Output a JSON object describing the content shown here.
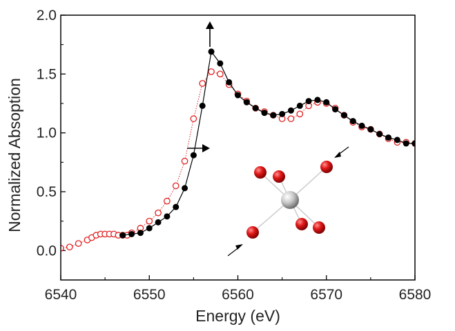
{
  "chart_data": {
    "type": "scatter",
    "title": "",
    "xlabel": "Energy (eV)",
    "ylabel": "Normalized Absoption",
    "xlim": [
      6540,
      6580
    ],
    "ylim": [
      -0.25,
      2.0
    ],
    "x_ticks": [
      "6540",
      "6550",
      "6560",
      "6570",
      "6580"
    ],
    "y_ticks": [
      "0.0",
      "0.5",
      "1.0",
      "1.5",
      "2.0"
    ],
    "x_tick_values": [
      6540,
      6550,
      6560,
      6570,
      6580
    ],
    "y_tick_values": [
      0.0,
      0.5,
      1.0,
      1.5,
      2.0
    ],
    "grid": false,
    "legend": "none",
    "series": [
      {
        "marker": "filled-circle",
        "line": "solid",
        "color": "#000000",
        "x": [
          6547,
          6548,
          6549,
          6550,
          6551,
          6552,
          6553,
          6554,
          6555,
          6556,
          6557,
          6558,
          6559,
          6560,
          6561,
          6562,
          6563,
          6564,
          6565,
          6566,
          6567,
          6568,
          6569,
          6570,
          6571,
          6572,
          6573,
          6574,
          6575,
          6576,
          6577,
          6578,
          6579,
          6580
        ],
        "y": [
          0.13,
          0.14,
          0.15,
          0.19,
          0.24,
          0.29,
          0.37,
          0.53,
          0.81,
          1.23,
          1.69,
          1.59,
          1.43,
          1.32,
          1.26,
          1.21,
          1.17,
          1.15,
          1.16,
          1.19,
          1.23,
          1.27,
          1.28,
          1.26,
          1.2,
          1.15,
          1.1,
          1.06,
          1.03,
          0.99,
          0.96,
          0.94,
          0.91,
          0.91
        ]
      },
      {
        "marker": "open-circle",
        "line": "dotted",
        "color": "#e02020",
        "x": [
          6540,
          6541,
          6542,
          6543,
          6543.5,
          6544,
          6544.5,
          6545,
          6545.5,
          6546,
          6546.5,
          6547,
          6547.5,
          6548,
          6549,
          6550,
          6551,
          6552,
          6553,
          6554,
          6555,
          6556,
          6557,
          6558,
          6559,
          6560,
          6561,
          6562,
          6563,
          6564,
          6565,
          6566,
          6567,
          6568,
          6569,
          6570,
          6571,
          6572,
          6573,
          6574,
          6575,
          6576,
          6577,
          6578,
          6579,
          6580
        ],
        "y": [
          0.02,
          0.03,
          0.06,
          0.09,
          0.11,
          0.13,
          0.14,
          0.14,
          0.14,
          0.14,
          0.13,
          0.13,
          0.13,
          0.15,
          0.19,
          0.25,
          0.32,
          0.42,
          0.55,
          0.76,
          1.12,
          1.42,
          1.52,
          1.5,
          1.41,
          1.33,
          1.27,
          1.21,
          1.18,
          1.15,
          1.12,
          1.12,
          1.16,
          1.23,
          1.26,
          1.25,
          1.21,
          1.15,
          1.09,
          1.05,
          1.03,
          0.99,
          0.95,
          0.92,
          0.92,
          0.91
        ]
      }
    ],
    "annotations": [
      {
        "type": "arrow",
        "direction": "up",
        "color": "#000000"
      },
      {
        "type": "arrow",
        "direction": "right",
        "color": "#000000"
      }
    ],
    "inset": {
      "type": "molecule-diagram",
      "central_atom_color": "#c8c8c8",
      "ligand_color": "#e01818",
      "ligand_count": 6,
      "arrows": 2
    }
  }
}
